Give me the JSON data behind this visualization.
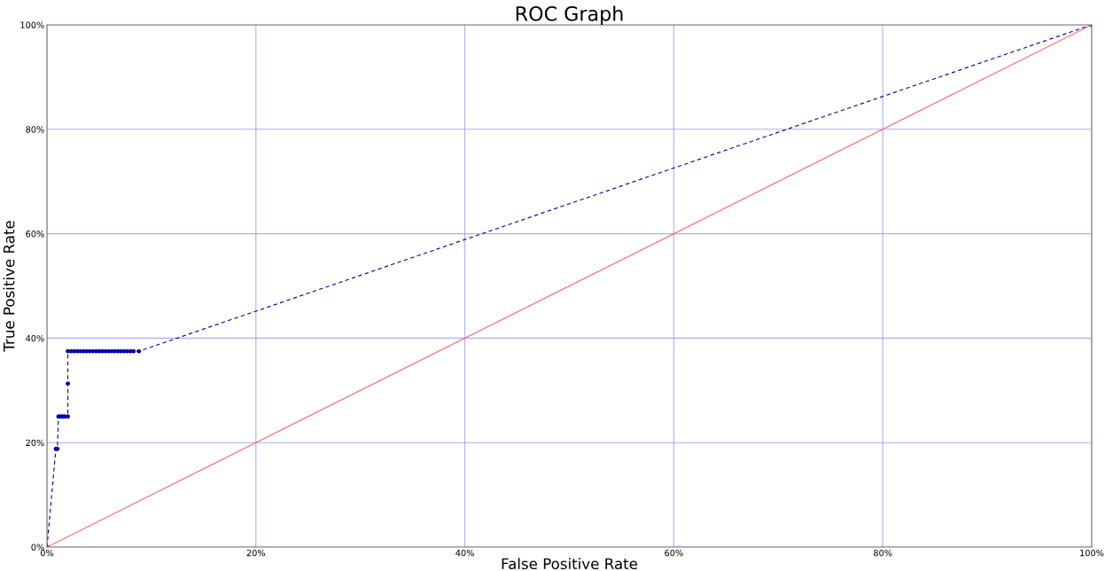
{
  "chart_data": {
    "type": "line",
    "title": "ROC Graph",
    "xlabel": "False Positive Rate",
    "ylabel": "True Positive Rate",
    "series": [
      {
        "color": "#0000aa",
        "line_style": "dashed",
        "marker": "circle",
        "x": [
          0,
          0.85,
          1.0,
          1.1,
          1.3,
          1.5,
          1.7,
          2.0,
          2.0,
          2.0,
          2.3,
          2.6,
          2.9,
          3.2,
          3.5,
          3.8,
          4.1,
          4.4,
          4.7,
          5.0,
          5.3,
          5.6,
          5.9,
          6.2,
          6.5,
          6.8,
          7.1,
          7.4,
          7.7,
          8.0,
          8.3,
          8.8,
          100
        ],
        "values": [
          0,
          18.8,
          18.8,
          25,
          25,
          25,
          25,
          25,
          31.3,
          37.5,
          37.5,
          37.5,
          37.5,
          37.5,
          37.5,
          37.5,
          37.5,
          37.5,
          37.5,
          37.5,
          37.5,
          37.5,
          37.5,
          37.5,
          37.5,
          37.5,
          37.5,
          37.5,
          37.5,
          37.5,
          37.5,
          37.5,
          100
        ]
      },
      {
        "color": "#ff6060",
        "line_style": "solid",
        "marker": "none",
        "x": [
          0,
          100
        ],
        "values": [
          0,
          100
        ]
      }
    ],
    "xlim": [
      0,
      100
    ],
    "ylim": [
      0,
      100
    ],
    "xticks": [
      {
        "value": 0,
        "label": "0%"
      },
      {
        "value": 20,
        "label": "20%"
      },
      {
        "value": 40,
        "label": "40%"
      },
      {
        "value": 60,
        "label": "60%"
      },
      {
        "value": 80,
        "label": "80%"
      },
      {
        "value": 100,
        "label": "100%"
      }
    ],
    "yticks": [
      {
        "value": 0,
        "label": "0%"
      },
      {
        "value": 20,
        "label": "20%"
      },
      {
        "value": 40,
        "label": "40%"
      },
      {
        "value": 60,
        "label": "60%"
      },
      {
        "value": 80,
        "label": "80%"
      },
      {
        "value": 100,
        "label": "100%"
      }
    ],
    "grid": true
  }
}
